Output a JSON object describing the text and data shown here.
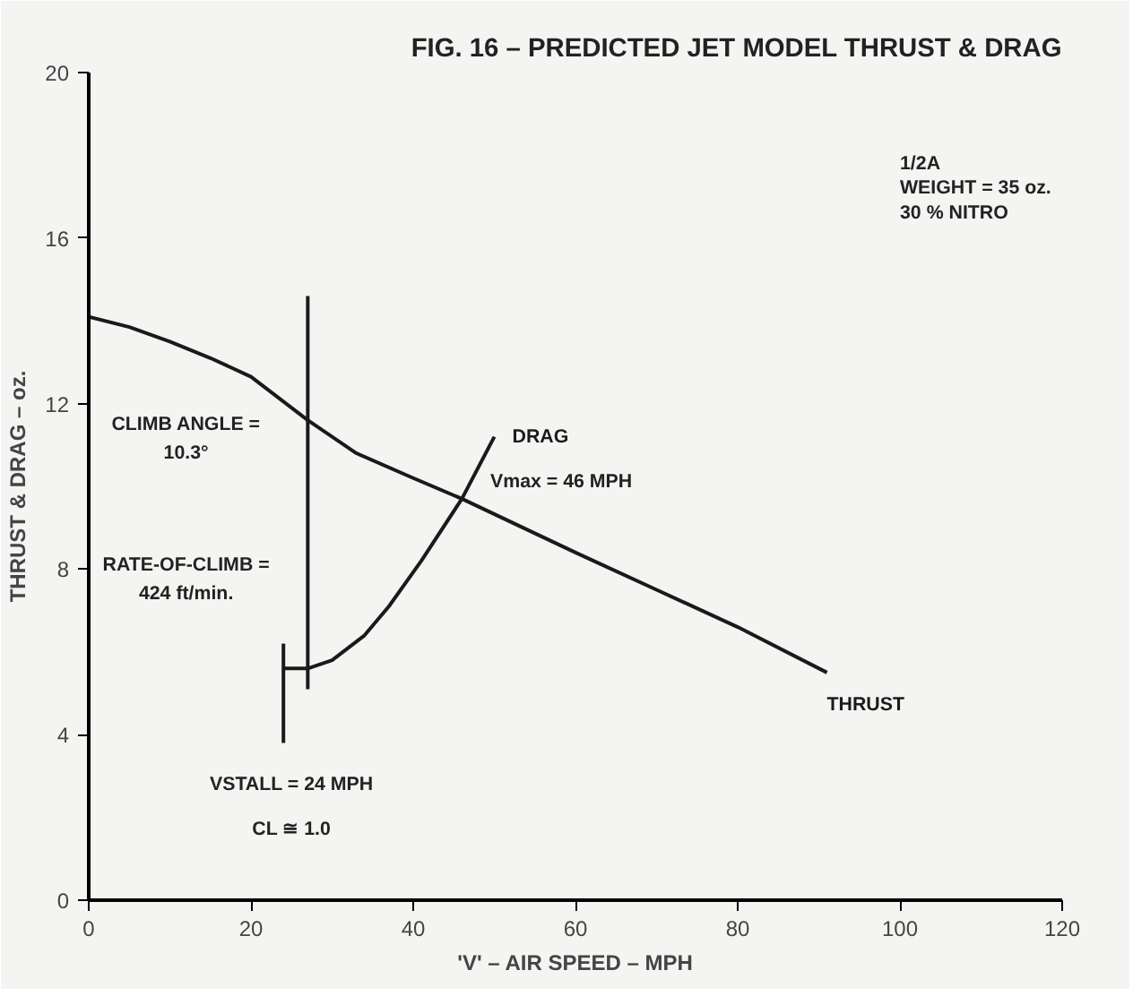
{
  "chart_data": {
    "type": "line",
    "title": "FIG. 16 – PREDICTED JET MODEL THRUST & DRAG",
    "xlabel": "'V' – AIR SPEED – MPH",
    "ylabel": "THRUST & DRAG – oz.",
    "xlim": [
      0,
      120
    ],
    "ylim": [
      0,
      20
    ],
    "xticks": [
      0,
      20,
      40,
      60,
      80,
      100,
      120
    ],
    "yticks": [
      0,
      4,
      8,
      12,
      16,
      20
    ],
    "grid": false,
    "marker": "none",
    "line_style": "solid",
    "series": [
      {
        "name": "THRUST",
        "color": "#1a1a1a",
        "x": [
          0,
          5,
          10,
          15,
          20,
          27,
          33,
          40,
          46,
          53,
          60,
          70,
          80,
          91
        ],
        "values": [
          14.1,
          13.85,
          13.5,
          13.1,
          12.65,
          11.6,
          10.8,
          10.2,
          9.7,
          9.05,
          8.4,
          7.5,
          6.6,
          5.5
        ]
      },
      {
        "name": "DRAG",
        "color": "#1a1a1a",
        "x": [
          24,
          27,
          30,
          34,
          37,
          41,
          46,
          50
        ],
        "values": [
          5.6,
          5.6,
          5.8,
          6.4,
          7.1,
          8.2,
          9.7,
          11.2
        ]
      },
      {
        "color": "#1a1a1a",
        "x": [
          27,
          27
        ],
        "values": [
          5.1,
          14.6
        ]
      },
      {
        "color": "#1a1a1a",
        "x": [
          24,
          24
        ],
        "values": [
          3.8,
          6.2
        ]
      }
    ],
    "annotations": [
      "1/2A",
      "WEIGHT = 35 oz.",
      "30 % NITRO",
      "CLIMB ANGLE =",
      "10.3°",
      "RATE-OF-CLIMB =",
      "424 ft/min.",
      "Vmax = 46 MPH",
      "VSTALL = 24 MPH",
      "CL ≅ 1.0"
    ]
  }
}
